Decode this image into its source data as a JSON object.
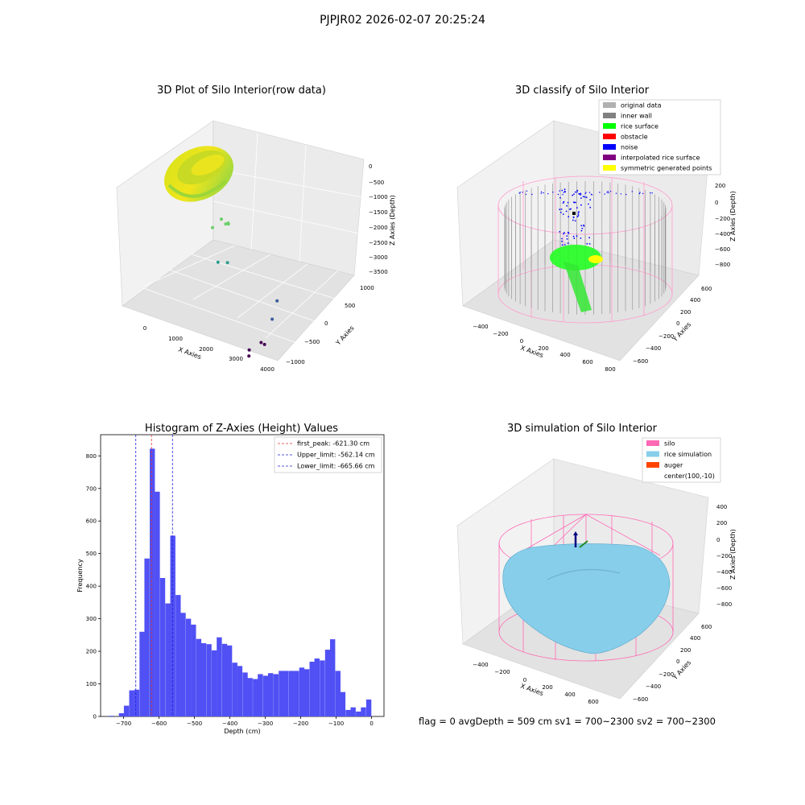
{
  "figure_title": "PJPJR02 2026-02-07 20:25:24",
  "status_line": "flag = 0     avgDepth = 509 cm  sv1 = 700~2300  sv2 = 700~2300",
  "colors": {
    "histogram_bar": "#5050f5",
    "first_peak_line": "#e03030",
    "limit_lines": "#2020d0",
    "silo_wire": "#ff69b4",
    "rice_simulation": "#87ceeb",
    "auger": "#ff4500",
    "original_data": "#b0b0b0",
    "inner_wall": "#808080",
    "rice_surface": "#00ff00",
    "obstacle": "#ff0000",
    "noise": "#0000ff",
    "interpolated_rice_surface": "#800080",
    "symmetric_generated_points": "#ffff00"
  },
  "chart_data": [
    {
      "type": "scatter",
      "projection": "3d",
      "title": "3D Plot of Silo Interior(row data)",
      "xlabel": "X Axies",
      "ylabel": "Y Axies",
      "zlabel": "Z Axies (Depth)",
      "x_ticks": [
        "0",
        "1000",
        "2000",
        "3000",
        "4000"
      ],
      "y_ticks": [
        "−1000",
        "−500",
        "0",
        "500",
        "1000"
      ],
      "z_ticks": [
        "0",
        "−500",
        "−1000",
        "−1500",
        "−2000",
        "−2500",
        "−3000",
        "−3500"
      ],
      "colormap": "viridis",
      "outlier_points": [
        {
          "x": 2500,
          "y": 0,
          "z": -100
        },
        {
          "x": 2300,
          "y": 200,
          "z": -500
        },
        {
          "x": 2100,
          "y": 300,
          "z": -700
        },
        {
          "x": 2000,
          "y": 100,
          "z": -600
        },
        {
          "x": 1800,
          "y": 400,
          "z": -900
        },
        {
          "x": 2600,
          "y": -100,
          "z": -1200
        },
        {
          "x": 2700,
          "y": 0,
          "z": -1300
        },
        {
          "x": 3900,
          "y": 200,
          "z": -2300
        },
        {
          "x": 3950,
          "y": 100,
          "z": -2700
        },
        {
          "x": 3800,
          "y": 0,
          "z": -3300
        },
        {
          "x": 3700,
          "y": 100,
          "z": -3500
        },
        {
          "x": 3400,
          "y": 0,
          "z": -3800
        },
        {
          "x": 3200,
          "y": 100,
          "z": -3800
        }
      ]
    },
    {
      "type": "scatter",
      "projection": "3d",
      "title": "3D classify of Silo Interior",
      "xlabel": "X Axies",
      "ylabel": "Y Axies",
      "zlabel": "Z Axies (Depth)",
      "x_ticks": [
        "−400",
        "−200",
        "0",
        "200",
        "400",
        "600",
        "800"
      ],
      "y_ticks": [
        "−600",
        "−400",
        "−200",
        "0",
        "200",
        "400",
        "600"
      ],
      "z_ticks": [
        "200",
        "0",
        "−200",
        "−400",
        "−600",
        "−800"
      ],
      "legend_position": "upper right",
      "legend": [
        {
          "label": "original data",
          "color_key": "original_data"
        },
        {
          "label": "inner wall",
          "color_key": "inner_wall"
        },
        {
          "label": "rice surface",
          "color_key": "rice_surface"
        },
        {
          "label": "obstacle",
          "color_key": "obstacle"
        },
        {
          "label": "noise",
          "color_key": "noise"
        },
        {
          "label": "interpolated rice surface",
          "color_key": "interpolated_rice_surface"
        },
        {
          "label": "symmetric generated points",
          "color_key": "symmetric_generated_points"
        }
      ]
    },
    {
      "type": "bar",
      "title": "Histogram of Z-Axies (Height) Values",
      "xlabel": "Depth (cm)",
      "ylabel": "Frequency",
      "xlim": [
        -765,
        35
      ],
      "ylim": [
        0,
        865
      ],
      "x_ticks": [
        -700,
        -600,
        -500,
        -400,
        -300,
        -200,
        -100,
        0
      ],
      "y_ticks": [
        0,
        100,
        200,
        300,
        400,
        500,
        600,
        700,
        800
      ],
      "bin_width": 14.6,
      "bins": [
        {
          "x": -735,
          "count": 2
        },
        {
          "x": -721,
          "count": 0
        },
        {
          "x": -706,
          "count": 10
        },
        {
          "x": -692,
          "count": 33
        },
        {
          "x": -677,
          "count": 80
        },
        {
          "x": -663,
          "count": 82
        },
        {
          "x": -648,
          "count": 260
        },
        {
          "x": -634,
          "count": 485
        },
        {
          "x": -619,
          "count": 822
        },
        {
          "x": -605,
          "count": 690
        },
        {
          "x": -590,
          "count": 425
        },
        {
          "x": -575,
          "count": 347
        },
        {
          "x": -561,
          "count": 555
        },
        {
          "x": -546,
          "count": 373
        },
        {
          "x": -532,
          "count": 318
        },
        {
          "x": -517,
          "count": 300
        },
        {
          "x": -503,
          "count": 282
        },
        {
          "x": -488,
          "count": 238
        },
        {
          "x": -474,
          "count": 225
        },
        {
          "x": -459,
          "count": 222
        },
        {
          "x": -444,
          "count": 203
        },
        {
          "x": -430,
          "count": 243
        },
        {
          "x": -415,
          "count": 223
        },
        {
          "x": -401,
          "count": 218
        },
        {
          "x": -386,
          "count": 165
        },
        {
          "x": -372,
          "count": 155
        },
        {
          "x": -357,
          "count": 135
        },
        {
          "x": -343,
          "count": 118
        },
        {
          "x": -328,
          "count": 115
        },
        {
          "x": -314,
          "count": 130
        },
        {
          "x": -299,
          "count": 125
        },
        {
          "x": -285,
          "count": 133
        },
        {
          "x": -270,
          "count": 130
        },
        {
          "x": -255,
          "count": 140
        },
        {
          "x": -241,
          "count": 140
        },
        {
          "x": -226,
          "count": 140
        },
        {
          "x": -212,
          "count": 140
        },
        {
          "x": -197,
          "count": 150
        },
        {
          "x": -183,
          "count": 145
        },
        {
          "x": -168,
          "count": 168
        },
        {
          "x": -154,
          "count": 178
        },
        {
          "x": -139,
          "count": 172
        },
        {
          "x": -124,
          "count": 205
        },
        {
          "x": -110,
          "count": 237
        },
        {
          "x": -95,
          "count": 140
        },
        {
          "x": -81,
          "count": 75
        },
        {
          "x": -66,
          "count": 20
        },
        {
          "x": -52,
          "count": 28
        },
        {
          "x": -37,
          "count": 15
        },
        {
          "x": -23,
          "count": 28
        },
        {
          "x": -8,
          "count": 52
        }
      ],
      "vlines": [
        {
          "label": "first_peak: -621.30 cm",
          "value": -621.3,
          "color_key": "first_peak_line"
        },
        {
          "label": "Upper_limit: -562.14 cm",
          "value": -562.14,
          "color_key": "limit_lines"
        },
        {
          "label": "Lower_limit: -665.66 cm",
          "value": -665.66,
          "color_key": "limit_lines"
        }
      ],
      "legend_position": "upper right"
    },
    {
      "type": "surface",
      "projection": "3d",
      "title": "3D simulation of Silo Interior",
      "xlabel": "X Axies",
      "ylabel": "Y Axies",
      "zlabel": "Z Axies (Depth)",
      "x_ticks": [
        "−400",
        "−200",
        "0",
        "200",
        "400",
        "600"
      ],
      "y_ticks": [
        "−600",
        "−400",
        "−200",
        "0",
        "200",
        "400",
        "600"
      ],
      "z_ticks": [
        "400",
        "200",
        "0",
        "−200",
        "−400",
        "−600",
        "−800"
      ],
      "legend_position": "upper right",
      "legend": [
        {
          "label": "silo",
          "color_key": "silo_wire"
        },
        {
          "label": "rice simulation",
          "color_key": "rice_simulation"
        },
        {
          "label": "auger",
          "color_key": "auger"
        },
        {
          "label": "center(100,-10)",
          "color_key": ""
        }
      ]
    }
  ]
}
